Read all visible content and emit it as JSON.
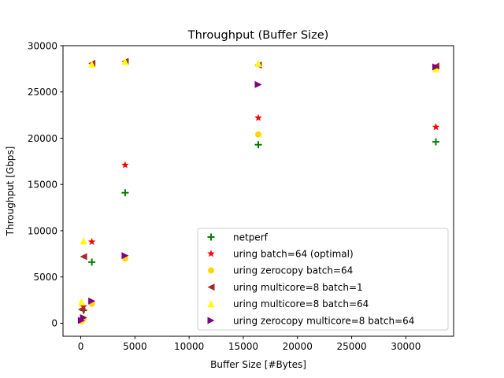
{
  "chart_data": {
    "type": "scatter",
    "title": "Throughput (Buffer Size)",
    "xlabel": "Buffer Size [#Bytes]",
    "ylabel": "Throughput [Gbps]",
    "xlim": [
      -1638,
      34406
    ],
    "ylim": [
      -1410,
      30000
    ],
    "xticks": [
      0,
      5000,
      10000,
      15000,
      20000,
      25000,
      30000
    ],
    "yticks": [
      0,
      5000,
      10000,
      15000,
      20000,
      25000,
      30000
    ],
    "grid": false,
    "legend": "lower-right",
    "series": [
      {
        "name": "netperf",
        "marker": "plus",
        "color": "#008000",
        "points": [
          [
            64,
            300
          ],
          [
            256,
            1400
          ],
          [
            1024,
            6600
          ],
          [
            4096,
            14100
          ],
          [
            16384,
            19300
          ],
          [
            32768,
            19600
          ]
        ]
      },
      {
        "name": "uring batch=64 (optimal)",
        "marker": "star",
        "color": "#ff0000",
        "points": [
          [
            64,
            400
          ],
          [
            256,
            1800
          ],
          [
            1024,
            8800
          ],
          [
            4096,
            17100
          ],
          [
            16384,
            22200
          ],
          [
            32768,
            21200
          ]
        ]
      },
      {
        "name": "uring zerocopy batch=64",
        "marker": "circle",
        "color": "#ffd700",
        "points": [
          [
            64,
            200
          ],
          [
            256,
            500
          ],
          [
            1024,
            2100
          ],
          [
            4096,
            7000
          ],
          [
            16384,
            20400
          ],
          [
            32768,
            27600
          ]
        ]
      },
      {
        "name": "uring multicore=8 batch=1",
        "marker": "triangle-left",
        "color": "#a52a2a",
        "points": [
          [
            64,
            1500
          ],
          [
            256,
            7200
          ],
          [
            1024,
            28100
          ],
          [
            4096,
            28300
          ],
          [
            16384,
            27900
          ],
          [
            32768,
            27800
          ]
        ]
      },
      {
        "name": "uring multicore=8 batch=64",
        "marker": "triangle-up",
        "color": "#ffff00",
        "points": [
          [
            64,
            2300
          ],
          [
            256,
            8900
          ],
          [
            1024,
            28000
          ],
          [
            4096,
            28300
          ],
          [
            16384,
            28100
          ],
          [
            32768,
            27500
          ]
        ]
      },
      {
        "name": "uring zerocopy multicore=8 batch=64",
        "marker": "triangle-right",
        "color": "#800080",
        "points": [
          [
            64,
            300
          ],
          [
            256,
            600
          ],
          [
            1024,
            2400
          ],
          [
            4096,
            7300
          ],
          [
            16384,
            25800
          ],
          [
            32768,
            27700
          ]
        ]
      }
    ]
  }
}
